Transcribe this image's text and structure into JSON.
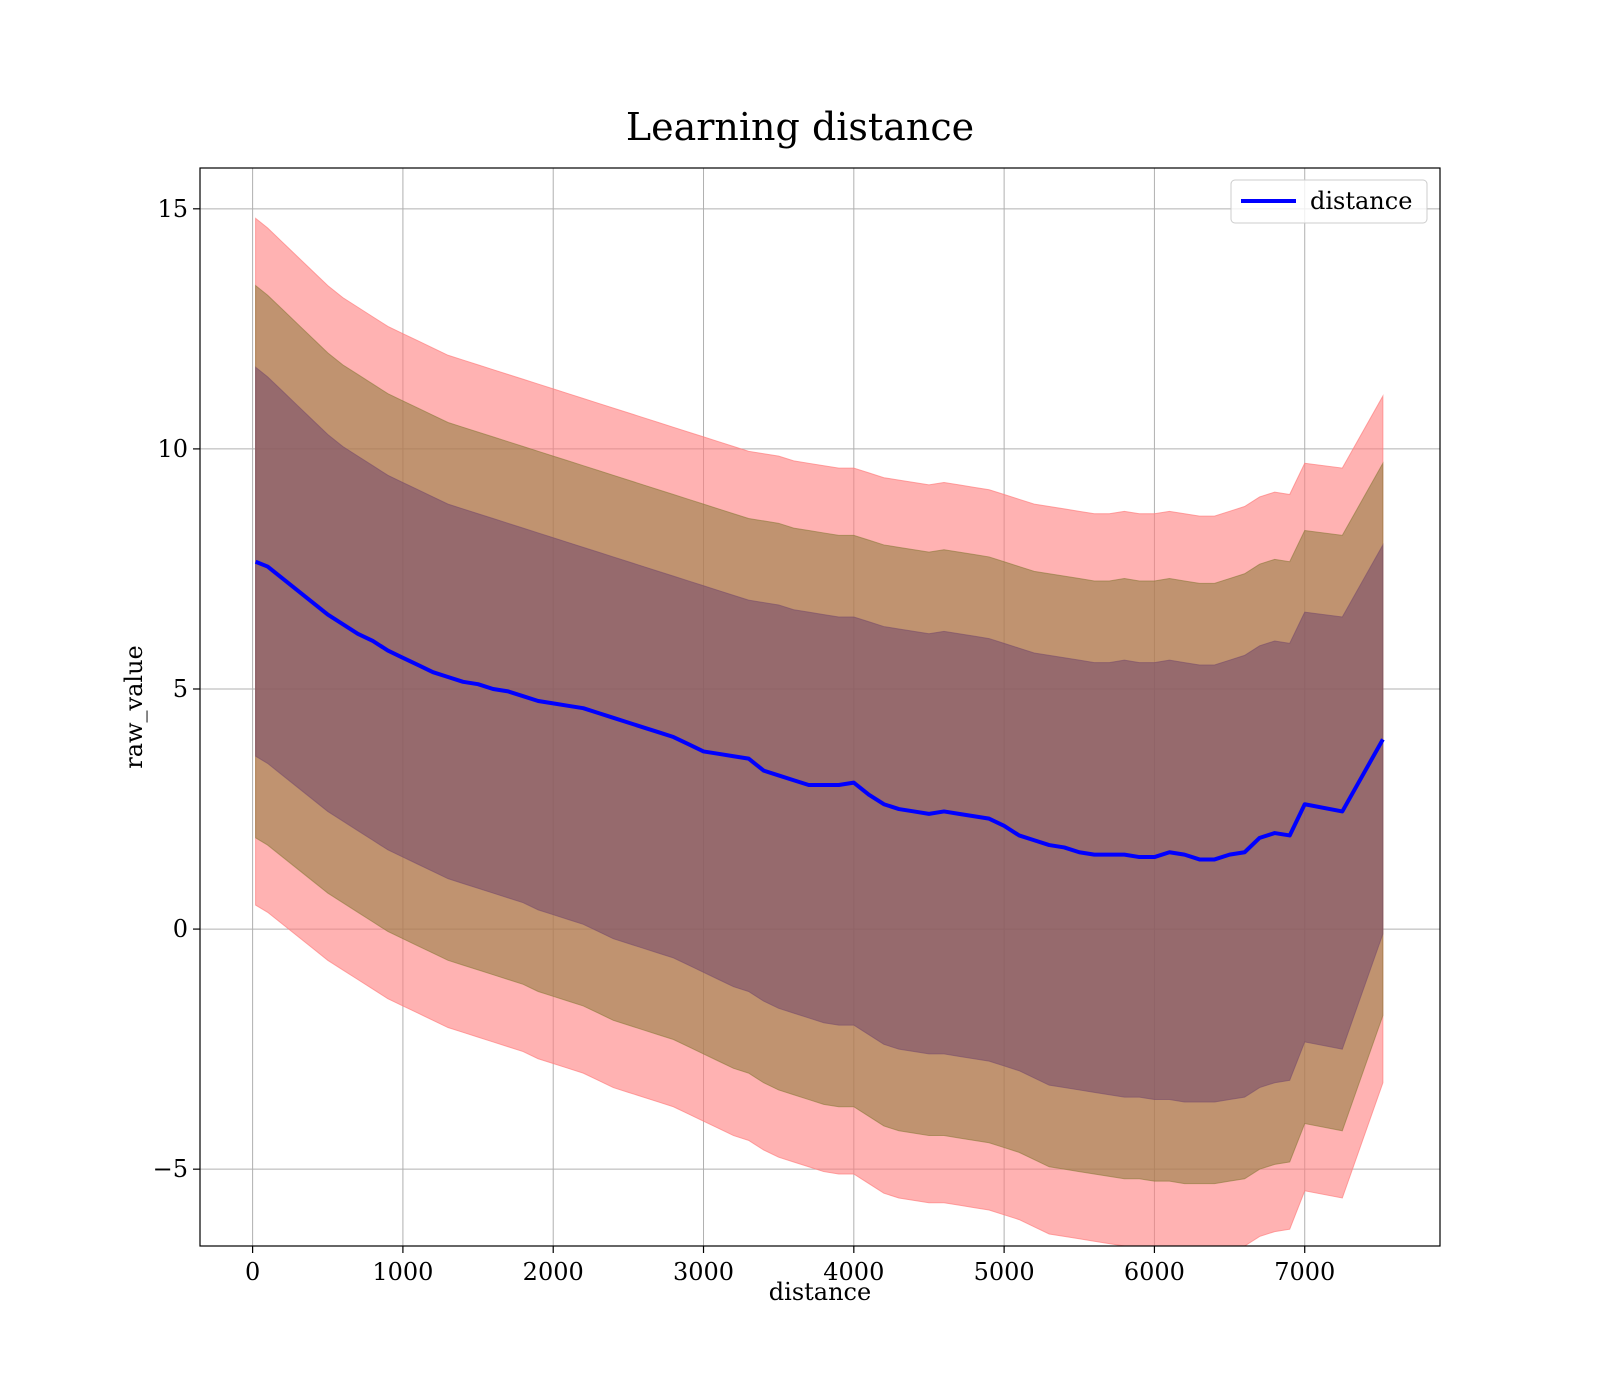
{
  "chart_data": {
    "type": "area",
    "title": "Learning distance",
    "xlabel": "distance",
    "ylabel": "raw_value",
    "xlim": [
      -350,
      7900
    ],
    "ylim": [
      -6.6,
      15.85
    ],
    "xticks": [
      0,
      1000,
      2000,
      3000,
      4000,
      5000,
      6000,
      7000
    ],
    "xtick_labels": [
      "0",
      "1000",
      "2000",
      "3000",
      "4000",
      "5000",
      "6000",
      "7000"
    ],
    "yticks": [
      -5,
      0,
      5,
      10,
      15
    ],
    "ytick_labels": [
      "−5",
      "0",
      "5",
      "10",
      "15"
    ],
    "grid": true,
    "legend": {
      "placement": "top-right",
      "entries": [
        "distance"
      ]
    },
    "colors": {
      "line": "#0000ff",
      "band_outer": "#ff7f7f",
      "band_middle": "#8c7a3a",
      "band_inner": "#7a4f6a"
    },
    "series": [
      {
        "name": "distance",
        "x": [
          20,
          100,
          200,
          300,
          400,
          500,
          600,
          700,
          800,
          900,
          1000,
          1100,
          1200,
          1300,
          1400,
          1500,
          1600,
          1700,
          1800,
          1900,
          2000,
          2100,
          2200,
          2300,
          2400,
          2500,
          2600,
          2700,
          2800,
          2900,
          3000,
          3100,
          3200,
          3300,
          3400,
          3500,
          3600,
          3700,
          3800,
          3900,
          4000,
          4100,
          4200,
          4300,
          4400,
          4500,
          4600,
          4700,
          4800,
          4900,
          5000,
          5100,
          5200,
          5300,
          5400,
          5500,
          5600,
          5700,
          5800,
          5900,
          6000,
          6100,
          6200,
          6300,
          6400,
          6500,
          6600,
          6700,
          6800,
          6900,
          7000,
          7250,
          7520
        ],
        "mean": [
          7.65,
          7.55,
          7.3,
          7.05,
          6.8,
          6.55,
          6.35,
          6.15,
          6.0,
          5.8,
          5.65,
          5.5,
          5.35,
          5.25,
          5.15,
          5.1,
          5.0,
          4.95,
          4.85,
          4.75,
          4.7,
          4.65,
          4.6,
          4.5,
          4.4,
          4.3,
          4.2,
          4.1,
          4.0,
          3.85,
          3.7,
          3.65,
          3.6,
          3.55,
          3.3,
          3.2,
          3.1,
          3.0,
          3.0,
          3.0,
          3.05,
          2.8,
          2.6,
          2.5,
          2.45,
          2.4,
          2.45,
          2.4,
          2.35,
          2.3,
          2.15,
          1.95,
          1.85,
          1.75,
          1.7,
          1.6,
          1.55,
          1.55,
          1.55,
          1.5,
          1.5,
          1.6,
          1.55,
          1.45,
          1.45,
          1.55,
          1.6,
          1.9,
          2.0,
          1.95,
          2.6,
          2.45,
          3.95
        ],
        "band_inner_upper": [
          11.7,
          11.5,
          11.2,
          10.9,
          10.6,
          10.3,
          10.05,
          9.85,
          9.65,
          9.45,
          9.3,
          9.15,
          9.0,
          8.85,
          8.75,
          8.65,
          8.55,
          8.45,
          8.35,
          8.25,
          8.15,
          8.05,
          7.95,
          7.85,
          7.75,
          7.65,
          7.55,
          7.45,
          7.35,
          7.25,
          7.15,
          7.05,
          6.95,
          6.85,
          6.8,
          6.75,
          6.65,
          6.6,
          6.55,
          6.5,
          6.5,
          6.4,
          6.3,
          6.25,
          6.2,
          6.15,
          6.2,
          6.15,
          6.1,
          6.05,
          5.95,
          5.85,
          5.75,
          5.7,
          5.65,
          5.6,
          5.55,
          5.55,
          5.6,
          5.55,
          5.55,
          5.6,
          5.55,
          5.5,
          5.5,
          5.6,
          5.7,
          5.9,
          6.0,
          5.95,
          6.6,
          6.5,
          8.0
        ],
        "band_inner_lower": [
          3.6,
          3.45,
          3.2,
          2.95,
          2.7,
          2.45,
          2.25,
          2.05,
          1.85,
          1.65,
          1.5,
          1.35,
          1.2,
          1.05,
          0.95,
          0.85,
          0.75,
          0.65,
          0.55,
          0.4,
          0.3,
          0.2,
          0.1,
          -0.05,
          -0.2,
          -0.3,
          -0.4,
          -0.5,
          -0.6,
          -0.75,
          -0.9,
          -1.05,
          -1.2,
          -1.3,
          -1.5,
          -1.65,
          -1.75,
          -1.85,
          -1.95,
          -2.0,
          -2.0,
          -2.2,
          -2.4,
          -2.5,
          -2.55,
          -2.6,
          -2.6,
          -2.65,
          -2.7,
          -2.75,
          -2.85,
          -2.95,
          -3.1,
          -3.25,
          -3.3,
          -3.35,
          -3.4,
          -3.45,
          -3.5,
          -3.5,
          -3.55,
          -3.55,
          -3.6,
          -3.6,
          -3.6,
          -3.55,
          -3.5,
          -3.3,
          -3.2,
          -3.15,
          -2.35,
          -2.5,
          -0.1
        ],
        "band_middle_upper": [
          13.4,
          13.2,
          12.9,
          12.6,
          12.3,
          12.0,
          11.75,
          11.55,
          11.35,
          11.15,
          11.0,
          10.85,
          10.7,
          10.55,
          10.45,
          10.35,
          10.25,
          10.15,
          10.05,
          9.95,
          9.85,
          9.75,
          9.65,
          9.55,
          9.45,
          9.35,
          9.25,
          9.15,
          9.05,
          8.95,
          8.85,
          8.75,
          8.65,
          8.55,
          8.5,
          8.45,
          8.35,
          8.3,
          8.25,
          8.2,
          8.2,
          8.1,
          8.0,
          7.95,
          7.9,
          7.85,
          7.9,
          7.85,
          7.8,
          7.75,
          7.65,
          7.55,
          7.45,
          7.4,
          7.35,
          7.3,
          7.25,
          7.25,
          7.3,
          7.25,
          7.25,
          7.3,
          7.25,
          7.2,
          7.2,
          7.3,
          7.4,
          7.6,
          7.7,
          7.65,
          8.3,
          8.2,
          9.7
        ],
        "band_middle_lower": [
          1.9,
          1.75,
          1.5,
          1.25,
          1.0,
          0.75,
          0.55,
          0.35,
          0.15,
          -0.05,
          -0.2,
          -0.35,
          -0.5,
          -0.65,
          -0.75,
          -0.85,
          -0.95,
          -1.05,
          -1.15,
          -1.3,
          -1.4,
          -1.5,
          -1.6,
          -1.75,
          -1.9,
          -2.0,
          -2.1,
          -2.2,
          -2.3,
          -2.45,
          -2.6,
          -2.75,
          -2.9,
          -3.0,
          -3.2,
          -3.35,
          -3.45,
          -3.55,
          -3.65,
          -3.7,
          -3.7,
          -3.9,
          -4.1,
          -4.2,
          -4.25,
          -4.3,
          -4.3,
          -4.35,
          -4.4,
          -4.45,
          -4.55,
          -4.65,
          -4.8,
          -4.95,
          -5.0,
          -5.05,
          -5.1,
          -5.15,
          -5.2,
          -5.2,
          -5.25,
          -5.25,
          -5.3,
          -5.3,
          -5.3,
          -5.25,
          -5.2,
          -5.0,
          -4.9,
          -4.85,
          -4.05,
          -4.2,
          -1.8
        ],
        "band_outer_upper": [
          14.8,
          14.6,
          14.3,
          14.0,
          13.7,
          13.4,
          13.15,
          12.95,
          12.75,
          12.55,
          12.4,
          12.25,
          12.1,
          11.95,
          11.85,
          11.75,
          11.65,
          11.55,
          11.45,
          11.35,
          11.25,
          11.15,
          11.05,
          10.95,
          10.85,
          10.75,
          10.65,
          10.55,
          10.45,
          10.35,
          10.25,
          10.15,
          10.05,
          9.95,
          9.9,
          9.85,
          9.75,
          9.7,
          9.65,
          9.6,
          9.6,
          9.5,
          9.4,
          9.35,
          9.3,
          9.25,
          9.3,
          9.25,
          9.2,
          9.15,
          9.05,
          8.95,
          8.85,
          8.8,
          8.75,
          8.7,
          8.65,
          8.65,
          8.7,
          8.65,
          8.65,
          8.7,
          8.65,
          8.6,
          8.6,
          8.7,
          8.8,
          9.0,
          9.1,
          9.05,
          9.7,
          9.6,
          11.1
        ],
        "band_outer_lower": [
          0.5,
          0.35,
          0.1,
          -0.15,
          -0.4,
          -0.65,
          -0.85,
          -1.05,
          -1.25,
          -1.45,
          -1.6,
          -1.75,
          -1.9,
          -2.05,
          -2.15,
          -2.25,
          -2.35,
          -2.45,
          -2.55,
          -2.7,
          -2.8,
          -2.9,
          -3.0,
          -3.15,
          -3.3,
          -3.4,
          -3.5,
          -3.6,
          -3.7,
          -3.85,
          -4.0,
          -4.15,
          -4.3,
          -4.4,
          -4.6,
          -4.75,
          -4.85,
          -4.95,
          -5.05,
          -5.1,
          -5.1,
          -5.3,
          -5.5,
          -5.6,
          -5.65,
          -5.7,
          -5.7,
          -5.75,
          -5.8,
          -5.85,
          -5.95,
          -6.05,
          -6.2,
          -6.35,
          -6.4,
          -6.45,
          -6.5,
          -6.55,
          -6.6,
          -6.6,
          -6.65,
          -6.65,
          -6.7,
          -6.7,
          -6.7,
          -6.65,
          -6.6,
          -6.4,
          -6.3,
          -6.25,
          -5.45,
          -5.6,
          -3.2
        ]
      }
    ]
  }
}
